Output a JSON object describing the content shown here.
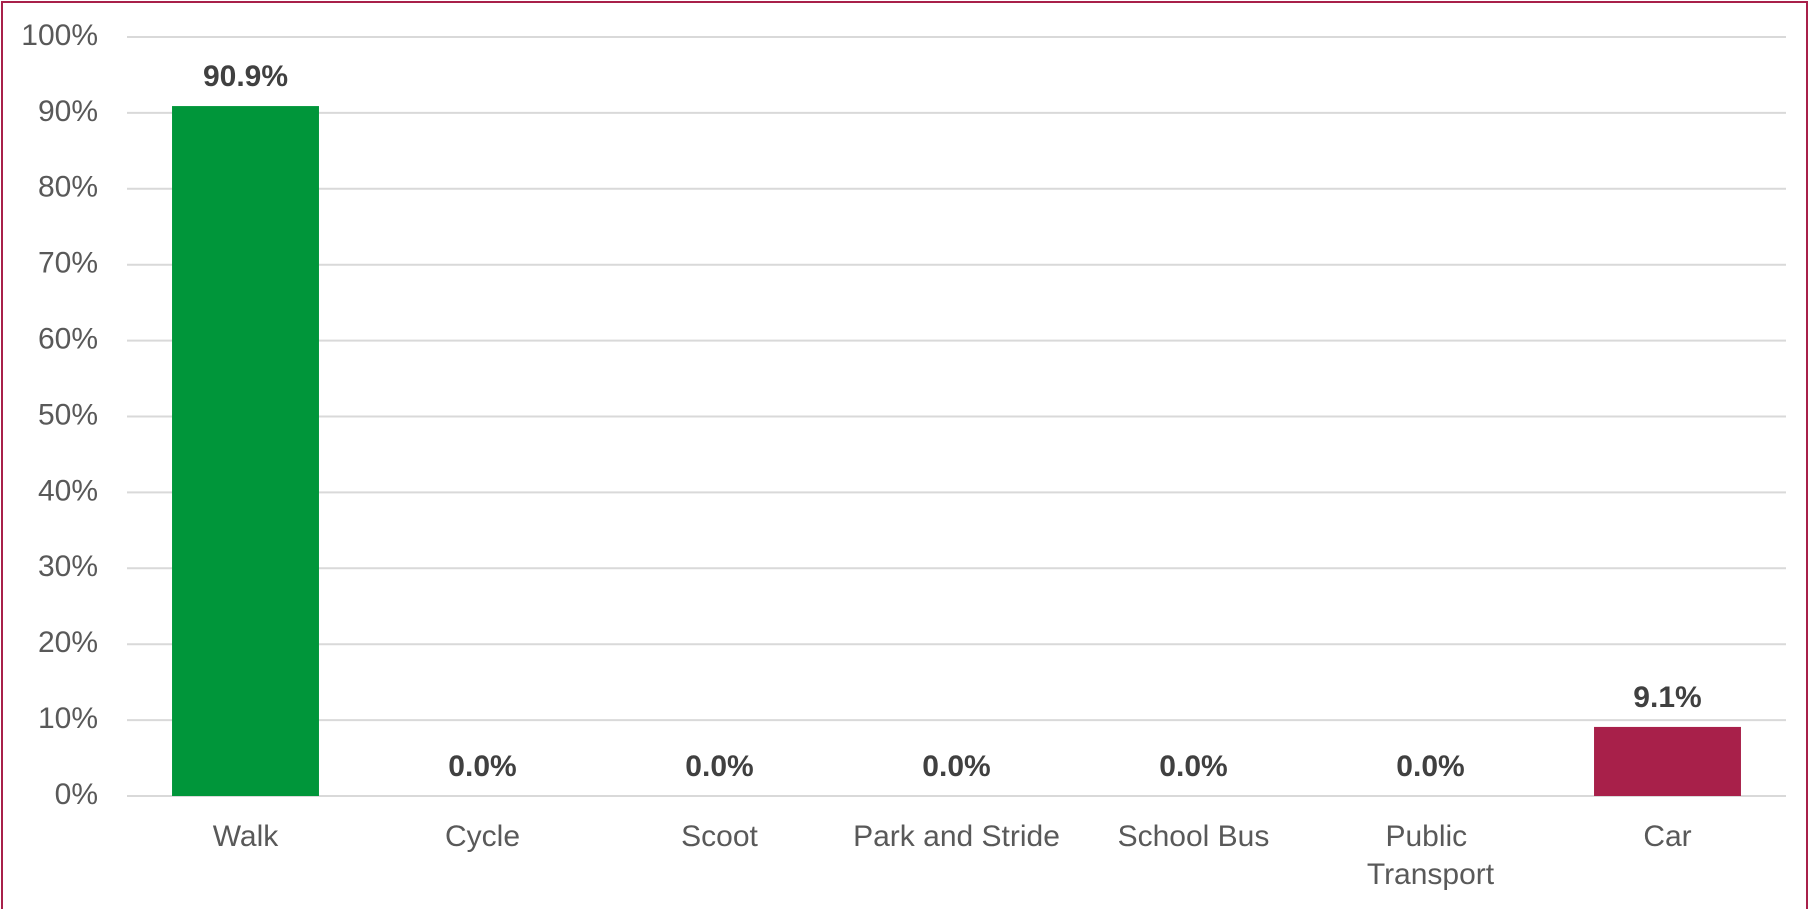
{
  "chart_data": {
    "type": "bar",
    "categories": [
      "Walk",
      "Cycle",
      "Scoot",
      "Park and Stride",
      "School Bus",
      "Public Transport",
      "Car"
    ],
    "values": [
      90.9,
      0,
      0,
      0,
      0,
      0,
      9.1
    ],
    "value_labels": [
      "90.9%",
      "0.0%",
      "0.0%",
      "0.0%",
      "0.0%",
      "0.0%",
      "9.1%"
    ],
    "colors": [
      "#00963a",
      "#00963a",
      "#00963a",
      "#00963a",
      "#00963a",
      "#00963a",
      "#a8204a"
    ],
    "ylim": [
      0,
      100
    ],
    "yticks": [
      {
        "value": 0,
        "label": "0%"
      },
      {
        "value": 10,
        "label": "10%"
      },
      {
        "value": 20,
        "label": "20%"
      },
      {
        "value": 30,
        "label": "30%"
      },
      {
        "value": 40,
        "label": "40%"
      },
      {
        "value": 50,
        "label": "50%"
      },
      {
        "value": 60,
        "label": "60%"
      },
      {
        "value": 70,
        "label": "70%"
      },
      {
        "value": 80,
        "label": "80%"
      },
      {
        "value": 90,
        "label": "90%"
      },
      {
        "value": 100,
        "label": "100%"
      }
    ],
    "grid": true
  }
}
